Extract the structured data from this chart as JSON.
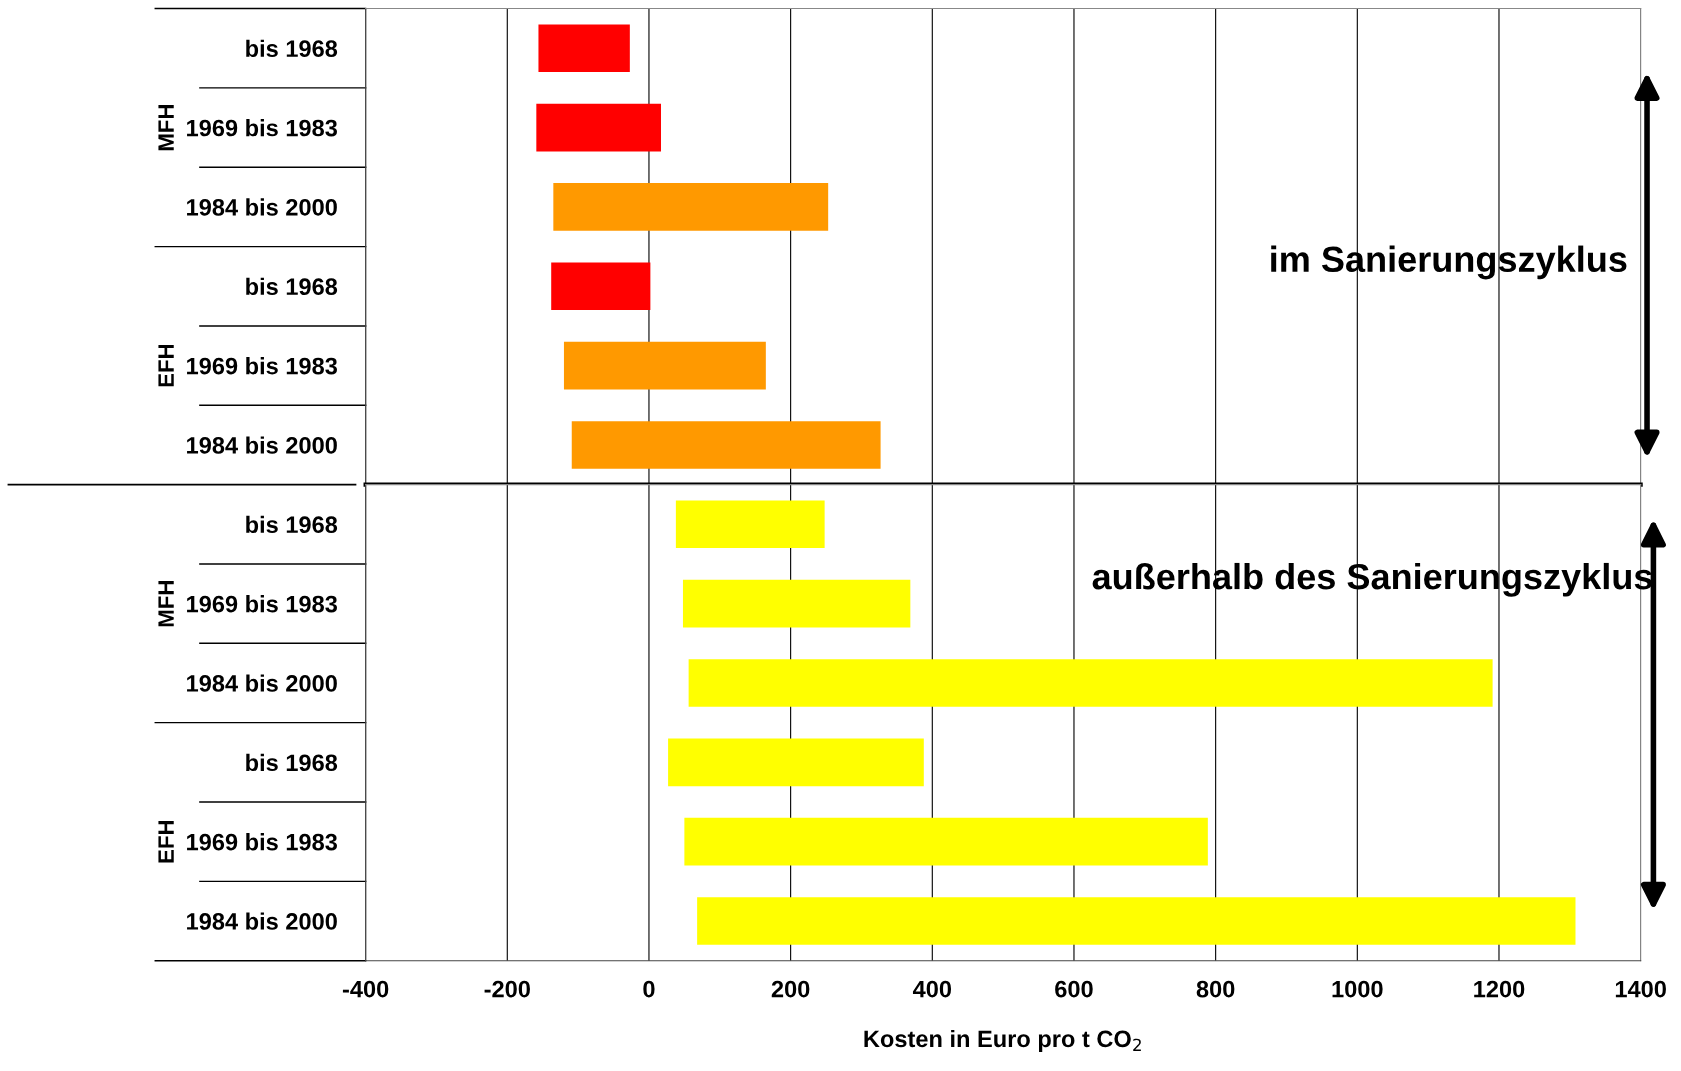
{
  "chart_data": [
    {
      "type": "bar",
      "orientation": "horizontal",
      "categories": [
        "bis 1968",
        "1969 bis 1983",
        "1984 bis 2000",
        "bis 1968",
        "1969 bis 1983",
        "1984 bis 2000"
      ],
      "base": [
        -156,
        -159,
        -135,
        -138,
        -120,
        -109
      ],
      "values": [
        129,
        176,
        388,
        140,
        285,
        436
      ],
      "colors": [
        "#ff0000",
        "#ff0000",
        "#ff9900",
        "#ff0000",
        "#ff9900",
        "#ff9900"
      ],
      "xlim": [
        -400,
        1400
      ],
      "xticks": [
        -400,
        -200,
        0,
        200,
        400,
        600,
        800,
        1000,
        1200,
        1400
      ],
      "tick_labels": "y",
      "grid": "x",
      "annotations": [
        "MFH",
        "EFH",
        "im Sanierungszyklus"
      ]
    },
    {
      "type": "bar",
      "orientation": "horizontal",
      "categories": [
        "bis 1968",
        "1969 bis 1983",
        "1984 bis 2000",
        "bis 1968",
        "1969 bis 1983",
        "1984 bis 2000"
      ],
      "base": [
        38,
        48,
        56,
        27,
        50,
        68
      ],
      "values": [
        210,
        321,
        1135,
        361,
        739,
        1240
      ],
      "colors": [
        "#ffff00",
        "#ffff00",
        "#ffff00",
        "#ffff00",
        "#ffff00",
        "#ffff00"
      ],
      "xlim": [
        -400,
        1400
      ],
      "xticks": [
        -400,
        -200,
        0,
        200,
        400,
        600,
        800,
        1000,
        1200,
        1400
      ],
      "xlabel": "Kosten in Euro pro t CO$_{2}$",
      "grid": "x",
      "annotations": [
        "MFH",
        "EFH",
        "außerhalb des Sanierungszyklus"
      ]
    }
  ]
}
